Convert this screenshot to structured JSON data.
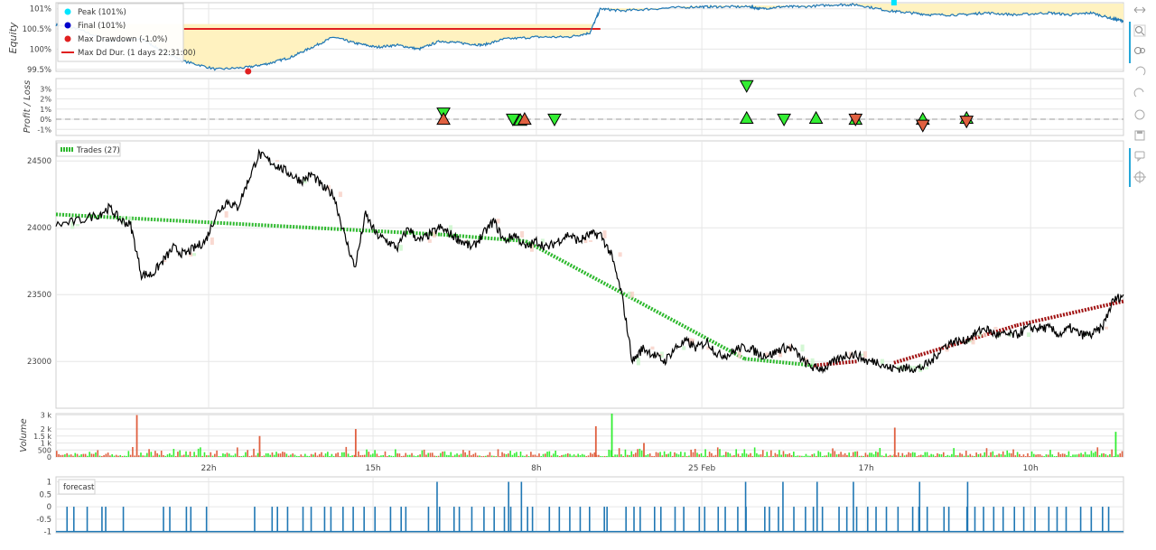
{
  "colors": {
    "equity": "#1f77b4",
    "drawdown_fill": "#fff2c0",
    "dd_duration": "#e02020",
    "peak": "#00e5ff",
    "final": "#0000cc",
    "maxdd": "#e02020",
    "win": "#33ee33",
    "loss": "#e06040",
    "price": "#000000",
    "vol_up": "#33ee33",
    "vol_down": "#e06040",
    "forecast": "#1f77b4",
    "grid": "#e6e6e6",
    "trade_win_line": "#2db82d",
    "trade_loss_line": "#a01010",
    "toolbar_accent": "#26a7d8"
  },
  "toolbar": {
    "icons": [
      "pan-icon",
      "box-zoom-icon",
      "wheel-zoom-icon",
      "undo-icon",
      "redo-icon",
      "reset-icon",
      "save-icon",
      "hover-icon",
      "crosshair-icon"
    ]
  },
  "chart_data": [
    {
      "type": "line",
      "panel": "equity",
      "ylabel": "Equity",
      "yticks": [
        "101%",
        "100.5%",
        "100%",
        "99.5%"
      ],
      "ylim": [
        99.45,
        101.15
      ],
      "legend": {
        "peak": "Peak (101%)",
        "final": "Final (101%)",
        "maxdd": "Max Drawdown (-1.0%)",
        "dd_duration": "Max Dd Dur. (1 days 22:31:00)"
      },
      "series": [
        {
          "x": [
            0,
            2,
            5,
            8,
            10,
            12,
            15,
            18,
            20,
            22,
            24,
            26,
            28,
            30,
            32,
            34,
            36,
            38,
            40,
            42,
            45,
            48,
            50,
            51,
            53,
            56,
            60,
            62,
            65,
            66,
            68,
            70,
            73,
            75,
            78,
            80,
            82,
            85,
            87,
            90,
            93,
            95,
            97,
            99,
            100
          ],
          "values": [
            100.6,
            100.5,
            100.2,
            100.25,
            99.95,
            99.7,
            99.5,
            99.55,
            99.65,
            99.8,
            100.05,
            100.3,
            100.15,
            100.05,
            100.1,
            100.0,
            100.2,
            100.15,
            100.1,
            100.25,
            100.3,
            100.3,
            100.4,
            101.0,
            100.95,
            101.0,
            101.05,
            101.05,
            101.05,
            101.0,
            101.05,
            101.05,
            101.1,
            101.1,
            100.95,
            100.9,
            100.85,
            100.85,
            100.9,
            100.85,
            100.9,
            100.85,
            100.9,
            100.75,
            100.7
          ]
        }
      ],
      "markers": {
        "peak": [
          78.5,
          101.15
        ],
        "maxdd": [
          18,
          99.45
        ]
      },
      "dd_duration_range": [
        12,
        51
      ],
      "dd_duration_level": 100.5
    },
    {
      "type": "scatter",
      "panel": "profit_loss",
      "ylabel": "Profit / Loss",
      "yticks": [
        "3%",
        "2%",
        "1%",
        "0%",
        "-1%"
      ],
      "ylim": [
        -1.6,
        4.0
      ],
      "points": [
        {
          "x": 36.3,
          "y": 0.6,
          "dir": "down",
          "color": "win"
        },
        {
          "x": 36.3,
          "y": 0.0,
          "dir": "up",
          "color": "loss"
        },
        {
          "x": 42.8,
          "y": 0.0,
          "dir": "down",
          "color": "win"
        },
        {
          "x": 43.5,
          "y": -0.1,
          "dir": "up",
          "color": "win"
        },
        {
          "x": 43.9,
          "y": 0.0,
          "dir": "up",
          "color": "loss"
        },
        {
          "x": 46.7,
          "y": 0.0,
          "dir": "down",
          "color": "win"
        },
        {
          "x": 64.7,
          "y": 3.3,
          "dir": "down",
          "color": "win"
        },
        {
          "x": 64.7,
          "y": 0.1,
          "dir": "up",
          "color": "win"
        },
        {
          "x": 68.2,
          "y": 0.0,
          "dir": "down",
          "color": "win"
        },
        {
          "x": 71.2,
          "y": 0.1,
          "dir": "up",
          "color": "win"
        },
        {
          "x": 74.9,
          "y": 0.0,
          "dir": "up",
          "color": "win"
        },
        {
          "x": 74.9,
          "y": 0.0,
          "dir": "down",
          "color": "loss"
        },
        {
          "x": 81.2,
          "y": 0.0,
          "dir": "up",
          "color": "win"
        },
        {
          "x": 81.2,
          "y": -0.6,
          "dir": "down",
          "color": "loss"
        },
        {
          "x": 85.3,
          "y": 0.1,
          "dir": "up",
          "color": "win"
        },
        {
          "x": 85.3,
          "y": -0.2,
          "dir": "down",
          "color": "loss"
        }
      ]
    },
    {
      "type": "line",
      "panel": "ohlc",
      "yticks": [
        "24500",
        "24000",
        "23500",
        "23000"
      ],
      "ylim": [
        22650,
        24650
      ],
      "legend": {
        "trades": "Trades (27)"
      },
      "series": [
        {
          "x": [
            0,
            2,
            4,
            5,
            6,
            7,
            8,
            9,
            10,
            11,
            12,
            13,
            14,
            15,
            16,
            17,
            18,
            19,
            20,
            21,
            22,
            23,
            24,
            25,
            26,
            27,
            28,
            29,
            30,
            31,
            32,
            33,
            34,
            35,
            36,
            37,
            38,
            39,
            40,
            41,
            42,
            43,
            44,
            45,
            46,
            47,
            48,
            49,
            50,
            51,
            52,
            53,
            54,
            55,
            56,
            57,
            58,
            59,
            60,
            61,
            62,
            63,
            64,
            65,
            66,
            67,
            68,
            69,
            70,
            71,
            72,
            73,
            74,
            75,
            76,
            77,
            78,
            79,
            80,
            81,
            82,
            83,
            84,
            85,
            86,
            87,
            88,
            89,
            90,
            91,
            92,
            93,
            94,
            95,
            96,
            97,
            98,
            99,
            100
          ],
          "values": [
            24020,
            24050,
            24100,
            24150,
            24060,
            24020,
            23650,
            23650,
            23750,
            23850,
            23800,
            23850,
            23900,
            24100,
            24200,
            24150,
            24350,
            24550,
            24500,
            24450,
            24400,
            24350,
            24400,
            24300,
            24250,
            23950,
            23700,
            24100,
            23950,
            23900,
            23850,
            24000,
            23900,
            23950,
            24000,
            23950,
            23900,
            23850,
            23950,
            24050,
            23900,
            23950,
            23850,
            23900,
            23850,
            23900,
            23950,
            23900,
            23950,
            23950,
            23800,
            23500,
            23000,
            23100,
            23050,
            23000,
            23100,
            23150,
            23100,
            23150,
            23050,
            23050,
            23100,
            23100,
            23050,
            23050,
            23100,
            23100,
            23000,
            22950,
            22950,
            23000,
            23050,
            23050,
            23000,
            23000,
            22950,
            22950,
            22950,
            22950,
            23000,
            23100,
            23150,
            23150,
            23200,
            23250,
            23200,
            23200,
            23200,
            23250,
            23250,
            23250,
            23200,
            23250,
            23200,
            23200,
            23250,
            23450,
            23500
          ]
        }
      ],
      "trades": [
        {
          "x": [
            0,
            36
          ],
          "y": [
            24100,
            23950
          ],
          "result": "win"
        },
        {
          "x": [
            36,
            44
          ],
          "y": [
            23950,
            23900
          ],
          "result": "win"
        },
        {
          "x": [
            44,
            64.5
          ],
          "y": [
            23900,
            23020
          ],
          "result": "win"
        },
        {
          "x": [
            64.5,
            71
          ],
          "y": [
            23020,
            22970
          ],
          "result": "win"
        },
        {
          "x": [
            71,
            75
          ],
          "y": [
            22970,
            23000
          ],
          "result": "loss"
        },
        {
          "x": [
            78.5,
            81
          ],
          "y": [
            22990,
            23050
          ],
          "result": "loss"
        },
        {
          "x": [
            81,
            90
          ],
          "y": [
            23050,
            23270
          ],
          "result": "loss"
        },
        {
          "x": [
            90,
            100
          ],
          "y": [
            23270,
            23450
          ],
          "result": "loss"
        }
      ]
    },
    {
      "type": "bar",
      "panel": "volume",
      "ylabel": "Volume",
      "yticks": [
        "3 k",
        "2 k",
        "1.5 k",
        "1 k",
        "500",
        "0"
      ],
      "ylim": [
        0,
        3100
      ],
      "spikes": [
        {
          "x": 7.5,
          "value": 3000,
          "color": "loss"
        },
        {
          "x": 19,
          "value": 1500,
          "color": "loss"
        },
        {
          "x": 28,
          "value": 2000,
          "color": "loss"
        },
        {
          "x": 50.5,
          "value": 2200,
          "color": "loss"
        },
        {
          "x": 52,
          "value": 3100,
          "color": "win"
        },
        {
          "x": 55,
          "value": 1000,
          "color": "loss"
        },
        {
          "x": 78.5,
          "value": 2100,
          "color": "loss"
        },
        {
          "x": 99.2,
          "value": 1800,
          "color": "win"
        }
      ]
    },
    {
      "type": "bar",
      "panel": "forecast",
      "legend": {
        "forecast": "forecast"
      },
      "yticks": [
        "1",
        "0.5",
        "0",
        "-0.5",
        "-1"
      ],
      "ylim": [
        -1.05,
        1.2
      ],
      "baseline": -1,
      "spikes_to_zero": [
        1,
        2,
        3,
        4,
        5,
        6,
        10,
        11,
        12,
        13,
        14,
        19,
        20,
        21,
        22,
        23,
        24,
        25,
        26,
        27,
        28,
        29,
        30,
        31,
        32,
        33,
        35,
        36,
        37,
        38,
        39,
        40,
        41,
        42,
        43,
        44,
        45,
        46,
        47,
        48,
        49,
        50,
        51,
        52,
        53,
        54,
        55,
        56,
        57,
        58,
        59,
        60,
        61,
        62,
        63,
        64,
        65,
        66,
        67,
        68,
        69,
        70,
        71,
        72,
        73,
        74,
        75,
        76,
        77,
        78,
        79,
        80,
        81,
        82,
        83,
        84,
        85,
        86,
        87,
        88,
        89,
        90,
        91,
        92,
        93,
        94,
        95,
        96,
        97,
        98,
        99
      ],
      "spikes_to_one": [
        35.7,
        42.4,
        43.6,
        64.6,
        68.1,
        71.3,
        74.7,
        80.9,
        85.4
      ]
    }
  ],
  "xaxis": {
    "ticks": [
      "22h",
      "15h",
      "8h",
      "25 Feb",
      "17h",
      "10h"
    ],
    "positions": [
      14.3,
      29.7,
      45.0,
      60.5,
      75.9,
      91.3
    ]
  }
}
